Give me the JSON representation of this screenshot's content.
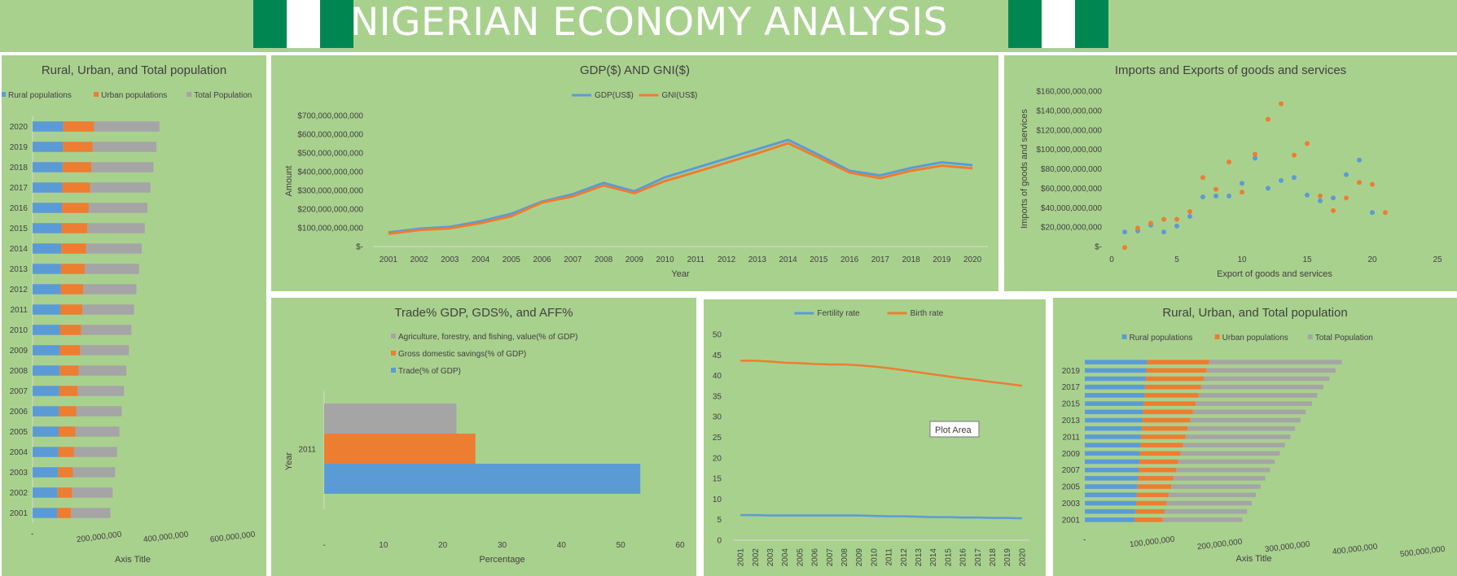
{
  "header": {
    "title": "NIGERIAN ECONOMY ANALYSIS",
    "flag_colors": {
      "green": "#008751",
      "white": "#ffffff"
    }
  },
  "colors": {
    "background": "#a9d18e",
    "blue": "#5b9bd5",
    "orange": "#ed7d31",
    "gray": "#a5a5a5"
  },
  "plot_area_tooltip": "Plot Area",
  "chart_data": [
    {
      "id": "pop1",
      "type": "bar",
      "orientation": "horizontal",
      "stacked": true,
      "title": "Rural, Urban, and Total population",
      "xlabel": "Axis Title",
      "ylabel": "",
      "categories": [
        "2001",
        "2002",
        "2003",
        "2004",
        "2005",
        "2006",
        "2007",
        "2008",
        "2009",
        "2010",
        "2011",
        "2012",
        "2013",
        "2014",
        "2015",
        "2016",
        "2017",
        "2018",
        "2019",
        "2020"
      ],
      "series": [
        {
          "name": "Rural populations",
          "values": [
            74000000,
            75000000,
            76000000,
            77000000,
            78000000,
            79000000,
            80000000,
            81000000,
            81500000,
            82000000,
            83000000,
            84000000,
            85000000,
            86000000,
            87000000,
            88000000,
            89000000,
            90000000,
            91000000,
            92000000
          ]
        },
        {
          "name": "Urban populations",
          "values": [
            41000000,
            43000000,
            45000000,
            47000000,
            50000000,
            52000000,
            55000000,
            57000000,
            60000000,
            63000000,
            66000000,
            68000000,
            71000000,
            74000000,
            77000000,
            80000000,
            83000000,
            86000000,
            89000000,
            92000000
          ]
        },
        {
          "name": "Total Population",
          "values": [
            118000000,
            122000000,
            126000000,
            129000000,
            132000000,
            136000000,
            139000000,
            143000000,
            147000000,
            151000000,
            155000000,
            159000000,
            163000000,
            167000000,
            172000000,
            176000000,
            181000000,
            186000000,
            191000000,
            196000000
          ]
        }
      ],
      "xlim": [
        0,
        600000000
      ],
      "xticks": [
        "-",
        "200,000,000",
        "400,000,000",
        "600,000,000"
      ],
      "legend": "top"
    },
    {
      "id": "gdp",
      "type": "line",
      "title": "GDP($) AND GNI($)",
      "xlabel": "Year",
      "ylabel": "Amount",
      "categories": [
        "2001",
        "2002",
        "2003",
        "2004",
        "2005",
        "2006",
        "2007",
        "2008",
        "2009",
        "2010",
        "2011",
        "2012",
        "2013",
        "2014",
        "2015",
        "2016",
        "2017",
        "2018",
        "2019",
        "2020"
      ],
      "series": [
        {
          "name": "GDP(US$)",
          "values": [
            75000000000,
            95000000000,
            105000000000,
            135000000000,
            175000000000,
            240000000000,
            280000000000,
            340000000000,
            295000000000,
            370000000000,
            420000000000,
            470000000000,
            520000000000,
            570000000000,
            490000000000,
            405000000000,
            380000000000,
            420000000000,
            450000000000,
            435000000000
          ]
        },
        {
          "name": "GNI(US$)",
          "values": [
            68000000000,
            88000000000,
            97000000000,
            125000000000,
            162000000000,
            235000000000,
            268000000000,
            326000000000,
            285000000000,
            350000000000,
            398000000000,
            448000000000,
            498000000000,
            552000000000,
            475000000000,
            395000000000,
            365000000000,
            405000000000,
            432000000000,
            418000000000
          ]
        }
      ],
      "ylim": [
        0,
        700000000000
      ],
      "yticks": [
        "$-",
        "$100,000,000,000",
        "$200,000,000,000",
        "$300,000,000,000",
        "$400,000,000,000",
        "$500,000,000,000",
        "$600,000,000,000",
        "$700,000,000,000"
      ],
      "legend": "top"
    },
    {
      "id": "trade",
      "type": "scatter",
      "title": "Imports and Exports of goods and services",
      "xlabel": "Export of goods and services",
      "ylabel": "Imports of goods and services",
      "series": [
        {
          "name": "blue",
          "x": [
            1,
            2,
            3,
            4,
            5,
            6,
            7,
            8,
            9,
            10,
            11,
            12,
            13,
            14,
            15,
            16,
            17,
            18,
            19,
            20
          ],
          "y": [
            15000000000,
            16000000000,
            22000000000,
            15000000000,
            21000000000,
            31000000000,
            51000000000,
            52000000000,
            52000000000,
            65000000000,
            91000000000,
            60000000000,
            68000000000,
            71000000000,
            53000000000,
            47000000000,
            50000000000,
            74000000000,
            89000000000,
            35000000000
          ]
        },
        {
          "name": "orange",
          "x": [
            1,
            2,
            3,
            4,
            5,
            6,
            7,
            8,
            9,
            10,
            11,
            12,
            13,
            14,
            15,
            16,
            17,
            18,
            19,
            20,
            21
          ],
          "y": [
            -1000000000,
            19000000000,
            24000000000,
            28000000000,
            28000000000,
            36000000000,
            71000000000,
            59000000000,
            87000000000,
            56000000000,
            95000000000,
            131000000000,
            147000000000,
            94000000000,
            106000000000,
            52000000000,
            37000000000,
            50000000000,
            66000000000,
            64000000000,
            35000000000
          ]
        }
      ],
      "xlim": [
        0,
        25
      ],
      "ylim": [
        0,
        160000000000
      ],
      "xticks": [
        "0",
        "5",
        "10",
        "15",
        "20",
        "25"
      ],
      "yticks": [
        "$-",
        "$20,000,000,000",
        "$40,000,000,000",
        "$60,000,000,000",
        "$80,000,000,000",
        "$100,000,000,000",
        "$120,000,000,000",
        "$140,000,000,000",
        "$160,000,000,000"
      ]
    },
    {
      "id": "tradepct",
      "type": "bar",
      "orientation": "horizontal",
      "title": "Trade% GDP, GDS%, and AFF%",
      "xlabel": "Percentage",
      "ylabel": "Year",
      "categories": [
        "2011"
      ],
      "series": [
        {
          "name": "Agriculture, forestry, and fishing, value(% of GDP)",
          "values": [
            22.3
          ]
        },
        {
          "name": "Gross domestic savings(% of GDP)",
          "values": [
            25.5
          ]
        },
        {
          "name": "Trade(% of GDP)",
          "values": [
            53.3
          ]
        }
      ],
      "xlim": [
        0,
        60
      ],
      "xticks": [
        "-",
        "10",
        "20",
        "30",
        "40",
        "50",
        "60"
      ],
      "legend": "top"
    },
    {
      "id": "fert",
      "type": "line",
      "title": "",
      "xlabel": "",
      "ylabel": "",
      "categories": [
        "2001",
        "2002",
        "2003",
        "2004",
        "2005",
        "2006",
        "2007",
        "2008",
        "2009",
        "2010",
        "2011",
        "2012",
        "2013",
        "2014",
        "2015",
        "2016",
        "2017",
        "2018",
        "2019",
        "2020"
      ],
      "series": [
        {
          "name": "Fertility rate",
          "values": [
            6.1,
            6.1,
            6.0,
            6.0,
            6.0,
            6.0,
            6.0,
            6.0,
            6.0,
            5.9,
            5.8,
            5.8,
            5.7,
            5.6,
            5.6,
            5.5,
            5.5,
            5.4,
            5.4,
            5.3
          ]
        },
        {
          "name": "Birth rate",
          "values": [
            43.6,
            43.6,
            43.4,
            43.1,
            43.0,
            42.8,
            42.7,
            42.7,
            42.5,
            42.2,
            41.8,
            41.3,
            40.8,
            40.3,
            39.8,
            39.3,
            38.9,
            38.4,
            38.0,
            37.5
          ]
        }
      ],
      "ylim": [
        0,
        50
      ],
      "yticks": [
        "0",
        "5",
        "10",
        "15",
        "20",
        "25",
        "30",
        "35",
        "40",
        "45",
        "50"
      ],
      "legend": "top"
    },
    {
      "id": "pop2",
      "type": "bar",
      "orientation": "horizontal",
      "stacked": true,
      "title": "Rural, Urban, and Total population",
      "xlabel": "Axis Title",
      "ylabel": "",
      "categories": [
        "2001",
        "2002",
        "2003",
        "2004",
        "2005",
        "2006",
        "2007",
        "2008",
        "2009",
        "2010",
        "2011",
        "2012",
        "2013",
        "2014",
        "2015",
        "2016",
        "2017",
        "2018",
        "2019",
        "2020"
      ],
      "tick_labels": [
        "2001",
        "",
        "2003",
        "",
        "2005",
        "",
        "2007",
        "",
        "2009",
        "",
        "2011",
        "",
        "2013",
        "",
        "2015",
        "",
        "2017",
        "",
        "2019",
        ""
      ],
      "series": [
        {
          "name": "Rural populations",
          "values": [
            74000000,
            75000000,
            76000000,
            77000000,
            78000000,
            79000000,
            80000000,
            81000000,
            81500000,
            82000000,
            83000000,
            84000000,
            85000000,
            86000000,
            87000000,
            88000000,
            89000000,
            90000000,
            91000000,
            92000000
          ]
        },
        {
          "name": "Urban populations",
          "values": [
            41000000,
            43000000,
            45000000,
            47000000,
            50000000,
            52000000,
            55000000,
            57000000,
            60000000,
            63000000,
            66000000,
            68000000,
            71000000,
            74000000,
            77000000,
            80000000,
            83000000,
            86000000,
            89000000,
            92000000
          ]
        },
        {
          "name": "Total Population",
          "values": [
            118000000,
            122000000,
            126000000,
            129000000,
            132000000,
            136000000,
            139000000,
            143000000,
            147000000,
            151000000,
            155000000,
            159000000,
            163000000,
            167000000,
            172000000,
            176000000,
            181000000,
            186000000,
            191000000,
            196000000
          ]
        }
      ],
      "xlim": [
        0,
        500000000
      ],
      "xticks": [
        "-",
        "100,000,000",
        "200,000,000",
        "300,000,000",
        "400,000,000",
        "500,000,000"
      ],
      "legend": "top"
    }
  ]
}
